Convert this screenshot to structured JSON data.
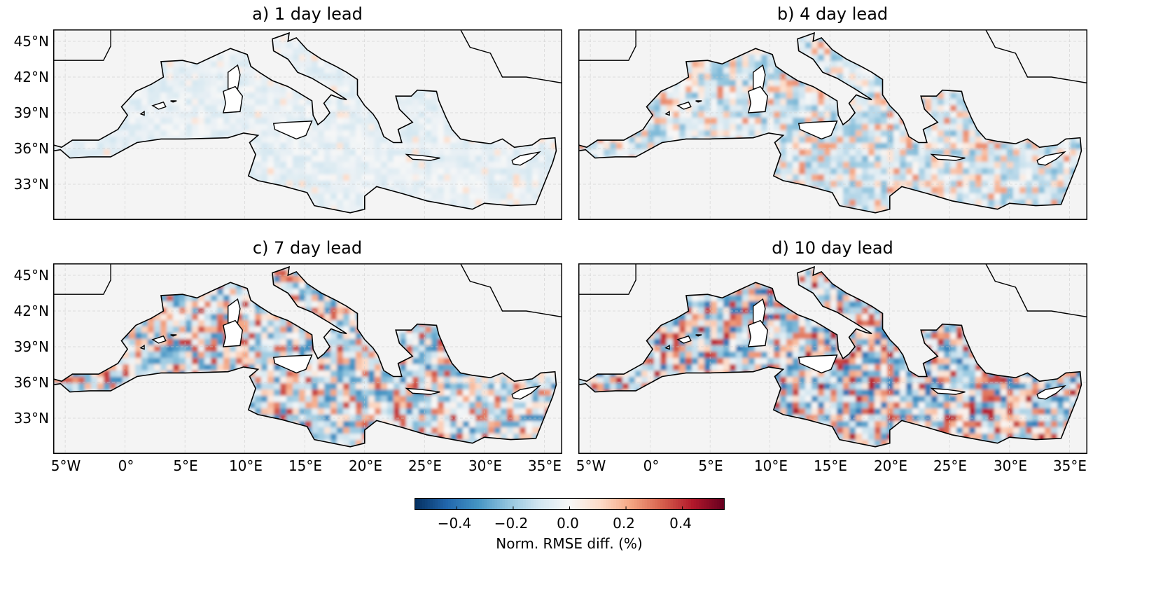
{
  "panels": [
    {
      "title": "a) 1 day lead",
      "intensity": 0.18,
      "red_frac": 0.08
    },
    {
      "title": "b) 4 day lead",
      "intensity": 0.45,
      "red_frac": 0.3
    },
    {
      "title": "c) 7 day lead",
      "intensity": 0.65,
      "red_frac": 0.42
    },
    {
      "title": "d) 10 day lead",
      "intensity": 0.75,
      "red_frac": 0.45
    }
  ],
  "lat_ticks": [
    "45°N",
    "42°N",
    "39°N",
    "36°N",
    "33°N"
  ],
  "lat_values": [
    45,
    42,
    39,
    36,
    33
  ],
  "lon_ticks": [
    "5°W",
    "0°",
    "5°E",
    "10°E",
    "15°E",
    "20°E",
    "25°E",
    "30°E",
    "35°E"
  ],
  "lon_values": [
    -5,
    0,
    5,
    10,
    15,
    20,
    25,
    30,
    35
  ],
  "extent": {
    "lon": [
      -6,
      36.5
    ],
    "lat": [
      30,
      46
    ]
  },
  "colorbar": {
    "label": "Norm. RMSE diff. (%)",
    "range": [
      -0.55,
      0.55
    ],
    "ticks": [
      "−0.4",
      "−0.2",
      "0.0",
      "0.2",
      "0.4"
    ],
    "tick_values": [
      -0.4,
      -0.2,
      0.0,
      0.2,
      0.4
    ],
    "colormap": "RdBu_r",
    "colors": [
      "#053061",
      "#2166ac",
      "#4393c3",
      "#92c5de",
      "#d1e5f0",
      "#f7f7f7",
      "#fddbc7",
      "#f4a582",
      "#d6604d",
      "#b2182b",
      "#67001f"
    ]
  },
  "land_color": "#ffffff",
  "ocean_bg": "#f4f4f4"
}
